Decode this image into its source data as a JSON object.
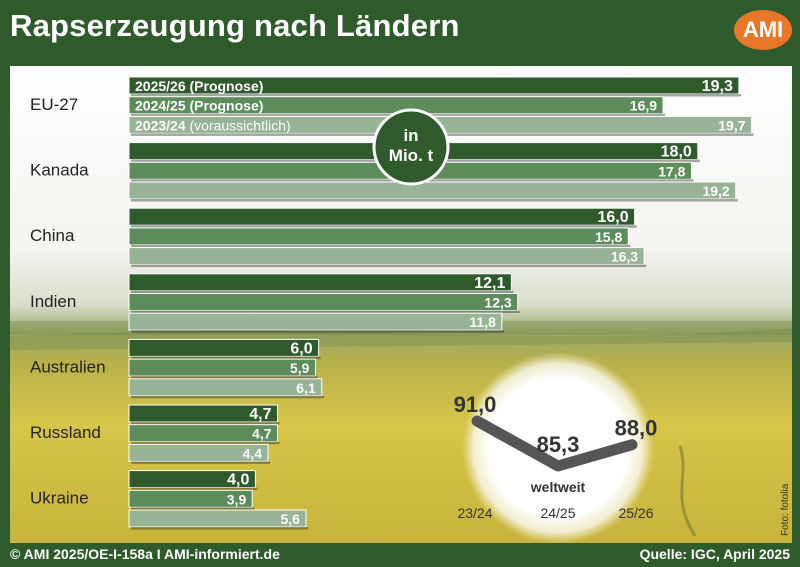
{
  "header": {
    "title": "Rapserzeugung nach Ländern",
    "logo": "AMI"
  },
  "footer": {
    "left": "© AMI 2025/OE-I-158a I AMI-informiert.de",
    "right": "Quelle: IGC, April 2025",
    "photo_credit": "Foto: fotolia"
  },
  "colors": {
    "dark_green": "#2f5a2c",
    "mid_green": "#5b8c5a",
    "light_green": "#98b496",
    "logo_orange": "#e9772a",
    "world_line": "#555555"
  },
  "unit_badge": {
    "line1": "in",
    "line2": "Mio. t"
  },
  "chart_data": {
    "type": "bar",
    "orientation": "horizontal",
    "unit": "in Mio. t",
    "categories": [
      "EU-27",
      "Kanada",
      "China",
      "Indien",
      "Australien",
      "Russland",
      "Ukraine"
    ],
    "series": [
      {
        "name": "2025/26 (Prognose)",
        "color": "#2f5a2c",
        "values": [
          19.3,
          18.0,
          16.0,
          12.1,
          6.0,
          4.7,
          4.0
        ],
        "labels": [
          "19,3",
          "18,0",
          "16,0",
          "12,1",
          "6,0",
          "4,7",
          "4,0"
        ]
      },
      {
        "name": "2024/25 (Prognose)",
        "color": "#5b8c5a",
        "values": [
          16.9,
          17.8,
          15.8,
          12.3,
          5.9,
          4.7,
          3.9
        ],
        "labels": [
          "16,9",
          "17,8",
          "15,8",
          "12,3",
          "5,9",
          "4,7",
          "3,9"
        ]
      },
      {
        "name": "2023/24",
        "name_suffix": "(voraussichtlich)",
        "color": "#98b496",
        "values": [
          19.7,
          19.2,
          16.3,
          11.8,
          6.1,
          4.4,
          5.6
        ],
        "labels": [
          "19,7",
          "19,2",
          "16,3",
          "11,8",
          "6,1",
          "4,4",
          "5,6"
        ]
      }
    ],
    "world": {
      "label": "weltweit",
      "x": [
        "23/24",
        "24/25",
        "25/26"
      ],
      "values": [
        91.0,
        85.3,
        88.0
      ],
      "labels": [
        "91,0",
        "85,3",
        "88,0"
      ]
    }
  }
}
